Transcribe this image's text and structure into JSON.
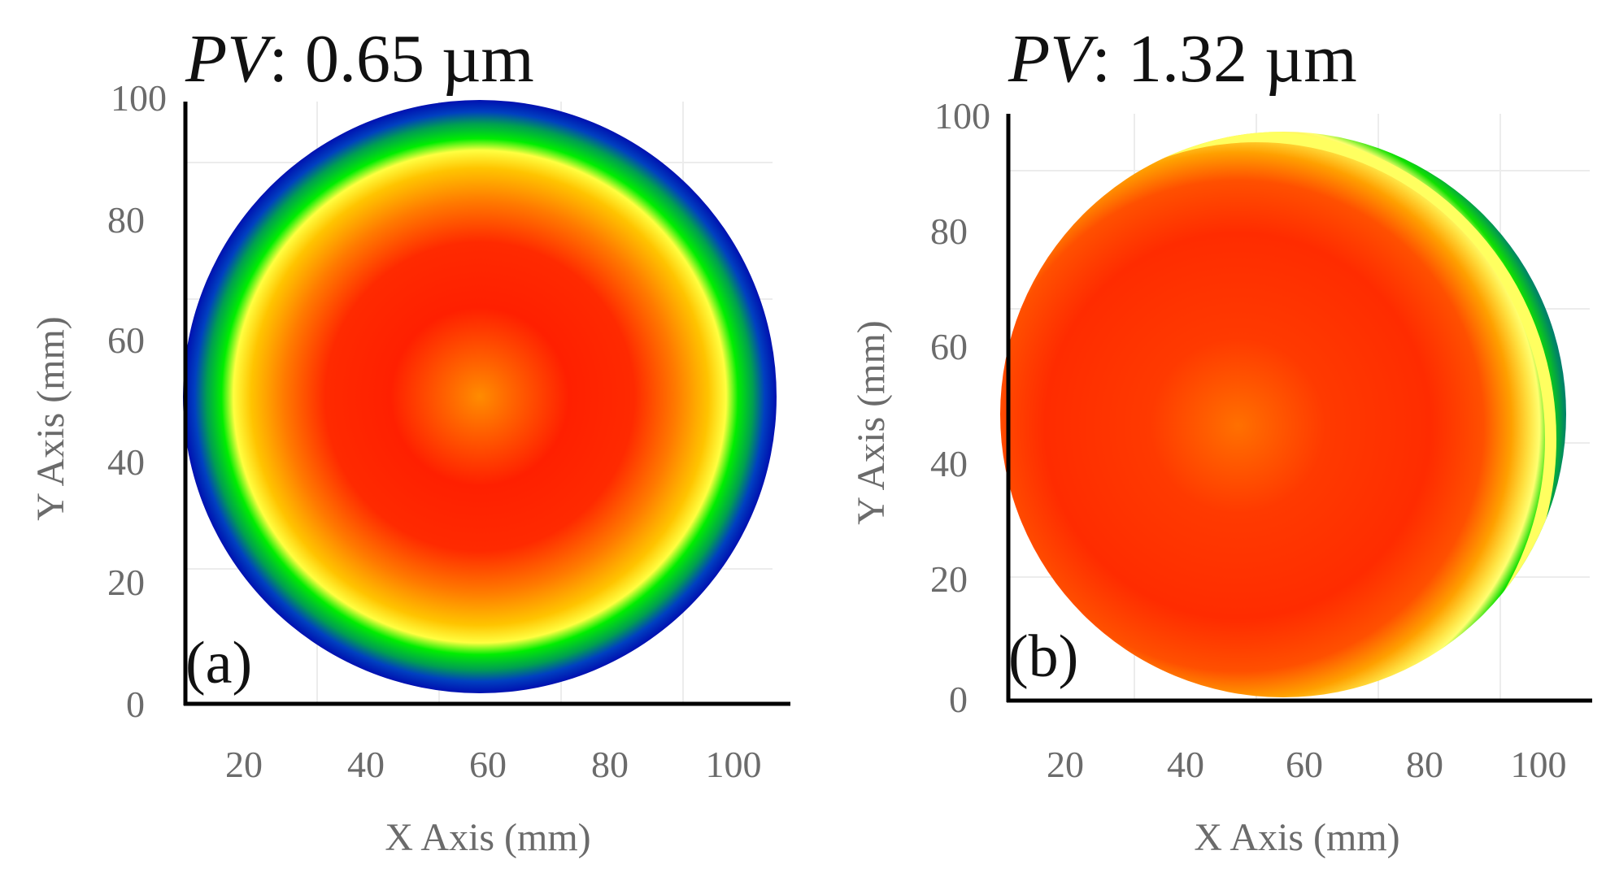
{
  "chart_data": [
    {
      "type": "heatmap",
      "title_prefix": "PV",
      "title_value": ": 0.65 µm",
      "panel_label": "(a)",
      "xlabel": "X Axis (mm)",
      "ylabel": "Y Axis (mm)",
      "xlim": [
        10,
        110
      ],
      "ylim": [
        0,
        100
      ],
      "xticks": [
        "20",
        "40",
        "60",
        "80",
        "100"
      ],
      "yticks": [
        "0",
        "20",
        "40",
        "60",
        "80",
        "100"
      ],
      "surface": {
        "center_x_mm": 58,
        "center_y_mm": 50,
        "radius_mm": 49,
        "colorscale_center_to_edge": [
          "#ff8800",
          "#ff2200",
          "#ff7700",
          "#ffcc00",
          "#ffff44",
          "#00ee00",
          "#009955",
          "#0033cc",
          "#0000aa"
        ]
      }
    },
    {
      "type": "heatmap",
      "title_prefix": "PV",
      "title_value": ": 1.32 µm",
      "panel_label": "(b)",
      "xlabel": "X Axis (mm)",
      "ylabel": "Y Axis (mm)",
      "xlim": [
        10,
        110
      ],
      "ylim": [
        0,
        100
      ],
      "xticks": [
        "20",
        "40",
        "60",
        "80",
        "100"
      ],
      "yticks": [
        "0",
        "20",
        "40",
        "60",
        "80",
        "100"
      ],
      "surface": {
        "center_x_mm": 59,
        "center_y_mm": 51,
        "radius_mm": 49,
        "colorscale_center_to_edge": [
          "#ff6a00",
          "#ff3300",
          "#ff3300",
          "#ff5a00",
          "#ffaa00",
          "#ffee44",
          "#00ee00",
          "#0033cc"
        ]
      }
    }
  ]
}
